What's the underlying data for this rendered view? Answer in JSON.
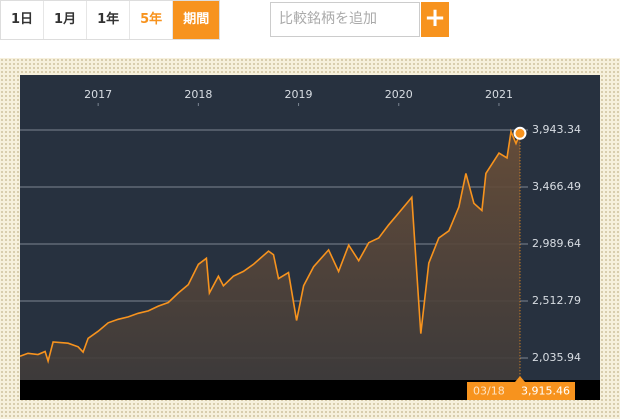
{
  "toolbar": {
    "ranges": [
      "1日",
      "1月",
      "1年",
      "5年",
      "期間"
    ],
    "search_placeholder": "比較銘柄を追加",
    "add_button": "+"
  },
  "chart_data": {
    "type": "area",
    "x": [
      2016.22,
      2016.3,
      2016.4,
      2016.47,
      2016.5,
      2016.55,
      2016.7,
      2016.8,
      2016.85,
      2016.9,
      2017.0,
      2017.1,
      2017.2,
      2017.3,
      2017.4,
      2017.5,
      2017.6,
      2017.7,
      2017.8,
      2017.9,
      2018.0,
      2018.08,
      2018.11,
      2018.2,
      2018.25,
      2018.35,
      2018.45,
      2018.55,
      2018.7,
      2018.75,
      2018.8,
      2018.9,
      2018.98,
      2019.05,
      2019.15,
      2019.3,
      2019.4,
      2019.5,
      2019.6,
      2019.7,
      2019.8,
      2019.9,
      2020.0,
      2020.13,
      2020.22,
      2020.3,
      2020.4,
      2020.5,
      2020.6,
      2020.67,
      2020.75,
      2020.83,
      2020.87,
      2021.0,
      2021.08,
      2021.12,
      2021.17,
      2021.21
    ],
    "values": [
      2050,
      2075,
      2065,
      2090,
      2010,
      2170,
      2160,
      2130,
      2085,
      2200,
      2260,
      2330,
      2360,
      2380,
      2410,
      2430,
      2470,
      2500,
      2580,
      2650,
      2820,
      2870,
      2580,
      2720,
      2640,
      2720,
      2760,
      2820,
      2930,
      2900,
      2700,
      2750,
      2350,
      2640,
      2800,
      2940,
      2760,
      2980,
      2850,
      3000,
      3040,
      3150,
      3250,
      3380,
      2240,
      2830,
      3040,
      3100,
      3300,
      3580,
      3330,
      3270,
      3580,
      3750,
      3710,
      3930,
      3830,
      3915.46
    ],
    "color": "#f7931e",
    "xlim": [
      2016.22,
      2021.21
    ],
    "xticks": [
      2017,
      2018,
      2019,
      2020,
      2021
    ],
    "ylim": [
      1852,
      4403
    ],
    "yticks": [
      {
        "value": 2035.94,
        "label": "2,035.94"
      },
      {
        "value": 2512.79,
        "label": "2,512.79"
      },
      {
        "value": 2989.64,
        "label": "2,989.64"
      },
      {
        "value": 3466.49,
        "label": "3,466.49"
      },
      {
        "value": 3943.34,
        "label": "3,943.34"
      }
    ],
    "grid": true,
    "current": {
      "date": "03/18",
      "value": 3915.46,
      "value_label": "3,915.46"
    }
  }
}
